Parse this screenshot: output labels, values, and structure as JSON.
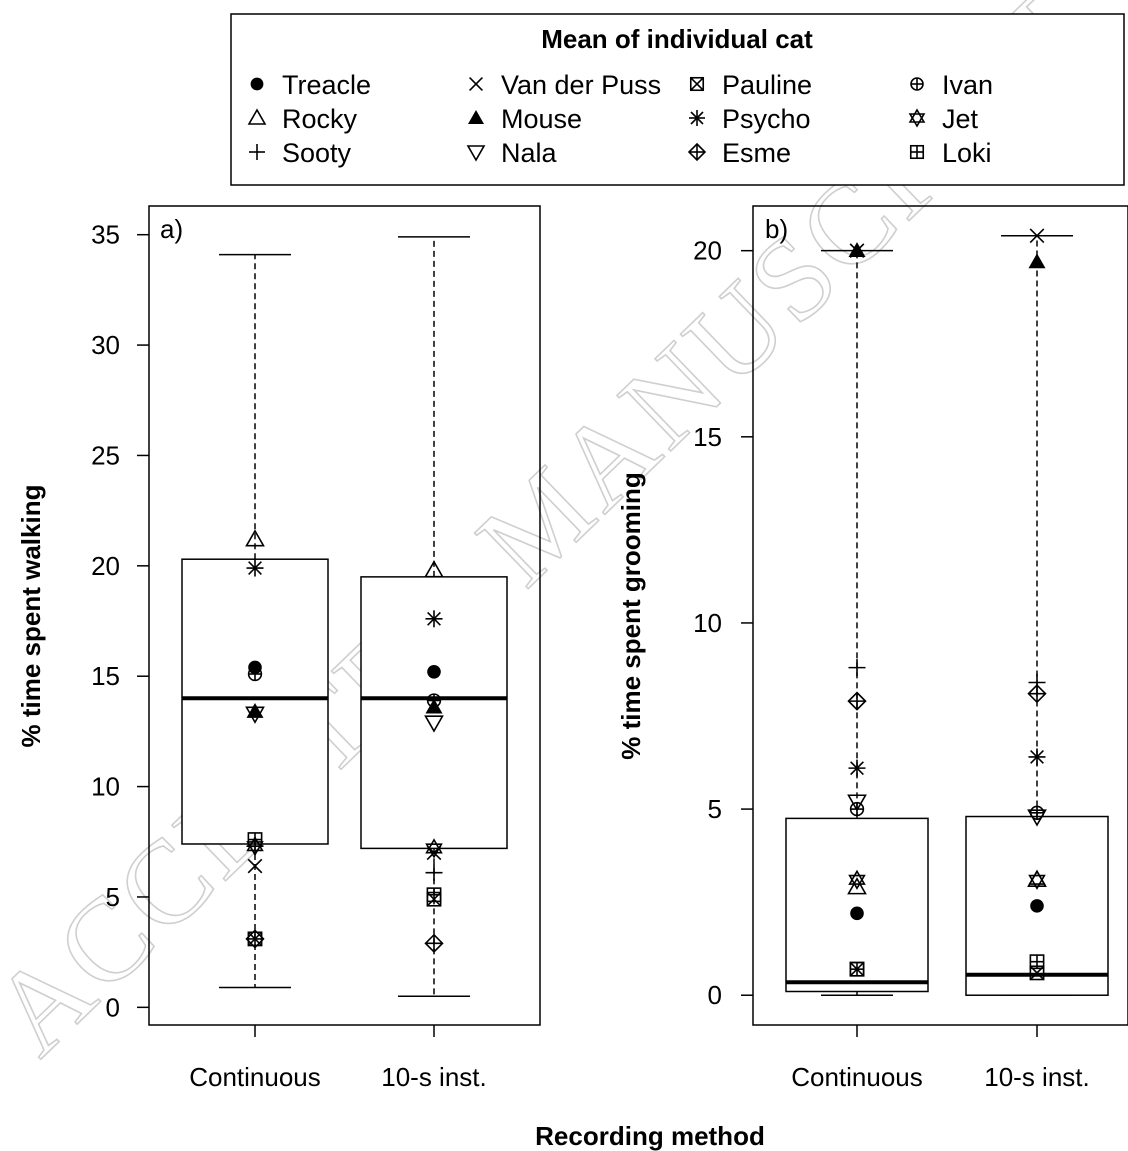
{
  "figure": {
    "watermark": "ACCEPTED MANUSCRIPT",
    "legend": {
      "title": "Mean of individual cat",
      "entries": [
        {
          "name": "Treacle",
          "symbol": "dot"
        },
        {
          "name": "Rocky",
          "symbol": "triangle-up-open"
        },
        {
          "name": "Sooty",
          "symbol": "plus"
        },
        {
          "name": "Van der Puss",
          "symbol": "cross"
        },
        {
          "name": "Mouse",
          "symbol": "triangle-up-filled"
        },
        {
          "name": "Nala",
          "symbol": "triangle-down-open"
        },
        {
          "name": "Pauline",
          "symbol": "square-cross"
        },
        {
          "name": "Psycho",
          "symbol": "asterisk"
        },
        {
          "name": "Esme",
          "symbol": "diamond-plus"
        },
        {
          "name": "Ivan",
          "symbol": "circle-plus"
        },
        {
          "name": "Jet",
          "symbol": "star-of-david"
        },
        {
          "name": "Loki",
          "symbol": "square-plus"
        }
      ]
    },
    "shared_xlabel": "Recording method"
  },
  "chart_data": [
    {
      "type": "box",
      "panel_label": "a)",
      "ylabel": "% time spent walking",
      "categories": [
        "Continuous",
        "10-s inst."
      ],
      "ylim": [
        -0.8,
        36.3
      ],
      "yticks": [
        0,
        5,
        10,
        15,
        20,
        25,
        30,
        35
      ],
      "boxes": [
        {
          "category": "Continuous",
          "whisker_low": 0.9,
          "q1": 7.4,
          "median": 14.0,
          "q3": 20.3,
          "whisker_high": 34.1
        },
        {
          "category": "10-s inst.",
          "whisker_low": 0.5,
          "q1": 7.2,
          "median": 14.0,
          "q3": 19.5,
          "whisker_high": 34.9
        }
      ],
      "points": {
        "Continuous": {
          "Treacle": 15.4,
          "Rocky": 21.2,
          "Sooty": 7.3,
          "Van der Puss": 6.4,
          "Mouse": 13.4,
          "Nala": 13.3,
          "Pauline": 3.1,
          "Psycho": 19.9,
          "Esme": 3.1,
          "Ivan": 15.1,
          "Jet": 7.3,
          "Loki": 7.6
        },
        "10-s inst.": {
          "Treacle": 15.2,
          "Rocky": 19.8,
          "Sooty": 6.1,
          "Van der Puss": 7.0,
          "Mouse": 13.6,
          "Nala": 12.9,
          "Pauline": 4.9,
          "Psycho": 17.6,
          "Esme": 2.9,
          "Ivan": 13.9,
          "Jet": 7.2,
          "Loki": 5.1
        }
      }
    },
    {
      "type": "box",
      "panel_label": "b)",
      "ylabel": "% time spent grooming",
      "categories": [
        "Continuous",
        "10-s inst."
      ],
      "ylim": [
        -0.8,
        21.2
      ],
      "yticks": [
        0,
        5,
        10,
        15,
        20
      ],
      "boxes": [
        {
          "category": "Continuous",
          "whisker_low": 0.0,
          "q1": 0.1,
          "median": 0.35,
          "q3": 4.75,
          "whisker_high": 20.0
        },
        {
          "category": "10-s inst.",
          "whisker_low": 0.0,
          "q1": 0.0,
          "median": 0.55,
          "q3": 4.8,
          "whisker_high": 20.4
        }
      ],
      "points": {
        "Continuous": {
          "Treacle": 2.2,
          "Rocky": 2.9,
          "Sooty": 8.8,
          "Van der Puss": 20.0,
          "Mouse": 20.0,
          "Nala": 5.2,
          "Pauline": 0.7,
          "Psycho": 6.1,
          "Esme": 7.9,
          "Ivan": 5.0,
          "Jet": 3.1,
          "Loki": 0.7
        },
        "10-s inst.": {
          "Treacle": 2.4,
          "Rocky": 3.1,
          "Sooty": 8.4,
          "Van der Puss": 20.4,
          "Mouse": 19.7,
          "Nala": 4.8,
          "Pauline": 0.6,
          "Psycho": 6.4,
          "Esme": 8.1,
          "Ivan": 4.9,
          "Jet": 3.1,
          "Loki": 0.9
        }
      }
    }
  ]
}
